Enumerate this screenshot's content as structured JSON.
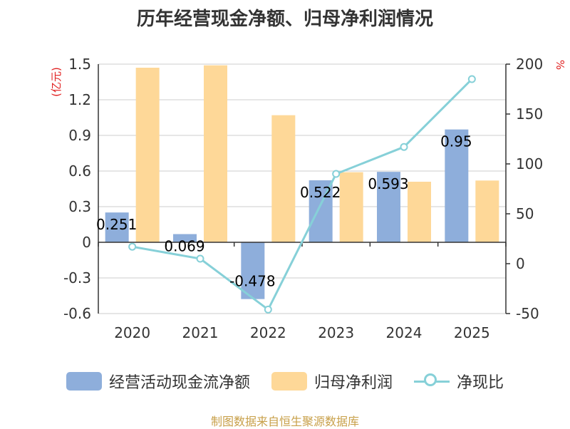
{
  "chart_data": {
    "type": "bar",
    "title": "历年经营现金净额、归母净利润情况",
    "categories": [
      "2020",
      "2021",
      "2022",
      "2023",
      "2024",
      "2025"
    ],
    "series": [
      {
        "name": "经营活动现金流净额",
        "type": "bar",
        "axis": "left",
        "color": "#8eaedb",
        "values": [
          0.251,
          0.069,
          -0.478,
          0.522,
          0.593,
          0.95
        ],
        "labels": [
          "0.251",
          "0.069",
          "-0.478",
          "0.522",
          "0.593",
          "0.95"
        ]
      },
      {
        "name": "归母净利润",
        "type": "bar",
        "axis": "left",
        "color": "#fed898",
        "values": [
          1.47,
          1.49,
          1.07,
          0.59,
          0.51,
          0.52
        ]
      },
      {
        "name": "净现比",
        "type": "line",
        "axis": "right",
        "color": "#86d0d8",
        "values": [
          17,
          5,
          -46,
          90,
          117,
          185
        ]
      }
    ],
    "y_left": {
      "unit": "(亿元)",
      "min": -0.6,
      "max": 1.5,
      "ticks": [
        -0.6,
        -0.3,
        0,
        0.3,
        0.6,
        0.9,
        1.2,
        1.5
      ],
      "tick_labels": [
        "-0.6",
        "-0.3",
        "0",
        "0.3",
        "0.6",
        "0.9",
        "1.2",
        "1.5"
      ]
    },
    "y_right": {
      "unit": "%",
      "min": -50,
      "max": 200,
      "ticks": [
        -50,
        0,
        50,
        100,
        150,
        200
      ],
      "tick_labels": [
        "-50",
        "0",
        "50",
        "100",
        "150",
        "200"
      ]
    },
    "legend_position": "bottom",
    "grid": true,
    "source": "制图数据来自恒生聚源数据库"
  },
  "colors": {
    "unit_red": "#e02020",
    "axis": "#333333",
    "grid": "#cccccc"
  }
}
